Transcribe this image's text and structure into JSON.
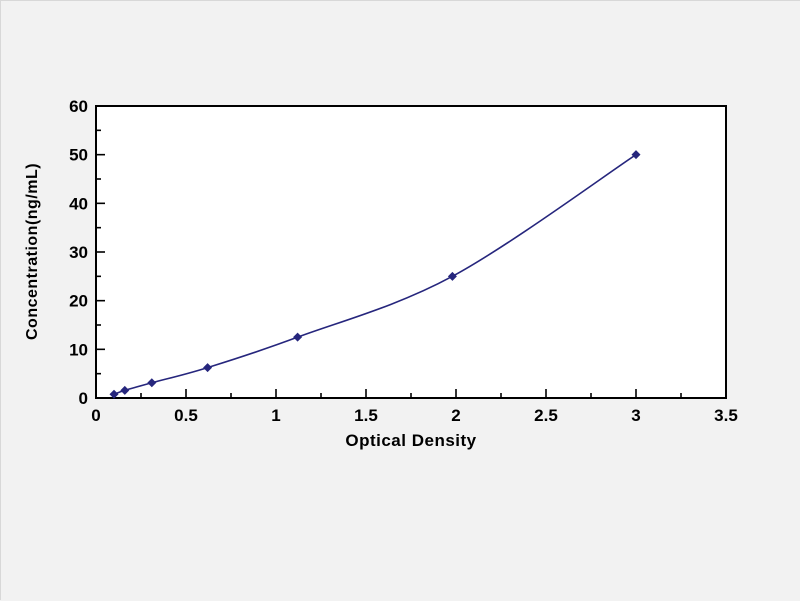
{
  "chart_data": {
    "type": "line",
    "title": "",
    "xlabel": "Optical Density",
    "ylabel": "Concentration(ng/mL)",
    "xlim": [
      0,
      3.5
    ],
    "ylim": [
      0,
      60
    ],
    "xticks": [
      0,
      0.5,
      1,
      1.5,
      2,
      2.5,
      3,
      3.5
    ],
    "yticks": [
      0,
      10,
      20,
      30,
      40,
      50,
      60
    ],
    "x_minor_step": 0.25,
    "y_minor_step": 5,
    "x": [
      0.1,
      0.16,
      0.31,
      0.62,
      1.12,
      1.98,
      3.0
    ],
    "y": [
      0.78,
      1.56,
      3.13,
      6.25,
      12.5,
      25,
      50
    ],
    "marker": "diamond",
    "grid": false,
    "legend": null
  },
  "colors": {
    "background": "#f2f2f2",
    "plot_background": "#ffffff",
    "axis": "#000000",
    "line": "#26267d",
    "tick_label": "#000000"
  }
}
